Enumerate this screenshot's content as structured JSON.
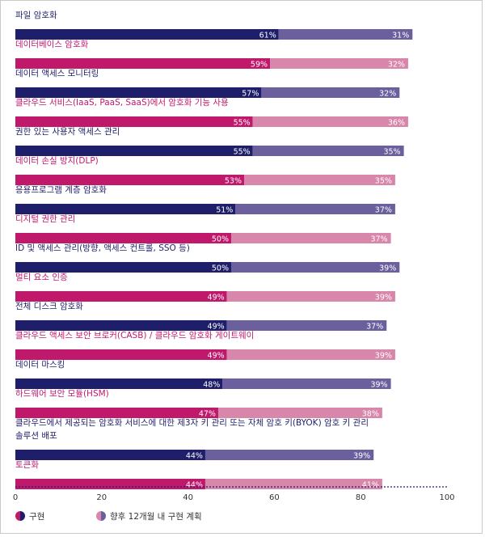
{
  "chart_data": {
    "type": "bar",
    "title": "",
    "xlabel": "",
    "ylabel": "",
    "xlim": [
      0,
      100
    ],
    "xticks": [
      0,
      20,
      40,
      60,
      80,
      100
    ],
    "grid": false,
    "legend_position": "bottom-left",
    "categories": [
      [
        "파일 암호화"
      ],
      [
        "데이터베이스 암호화"
      ],
      [
        "데이터 액세스 모니터링"
      ],
      [
        "클라우드 서비스(IaaS, PaaS, SaaS)에서 암호화 기능 사용"
      ],
      [
        "권한 있는 사용자 액세스 관리"
      ],
      [
        "데이터 손실 방지(DLP)"
      ],
      [
        "응용프로그램 계층 암호화"
      ],
      [
        "디지털 권한 관리"
      ],
      [
        "ID 및 액세스 관리(방향, 액세스 컨트롤, SSO 등)"
      ],
      [
        "멀티 요소 인증"
      ],
      [
        "전체 디스크 암호화"
      ],
      [
        "클라우드 액세스 보안 브로커(CASB) / 클라우드 암호화 게이트웨이"
      ],
      [
        "데이터 마스킹"
      ],
      [
        "하드웨어 보안 모듈(HSM)"
      ],
      [
        "클라우드에서 제공되는 암호화 서비스에 대한 제3자 키 관리 또는 자체 암호 키(BYOK) 암호 키 관리",
        "솔루션 배포"
      ],
      [
        "토큰화"
      ]
    ],
    "series": [
      {
        "name": "구현",
        "values": [
          61,
          59,
          57,
          55,
          55,
          53,
          51,
          50,
          50,
          49,
          49,
          49,
          48,
          47,
          44,
          44
        ]
      },
      {
        "name": "향후 12개월 내 구현 계획",
        "values": [
          31,
          32,
          32,
          36,
          35,
          35,
          37,
          37,
          39,
          39,
          37,
          39,
          39,
          38,
          39,
          41
        ]
      }
    ],
    "value_suffix": "%",
    "colors": {
      "navy": "#1f1e6b",
      "navy_light": "#6b5f9e",
      "magenta": "#c0196c",
      "magenta_light": "#d886aa",
      "label_navy": "#1f1e6b",
      "label_magenta": "#c0196c"
    }
  }
}
